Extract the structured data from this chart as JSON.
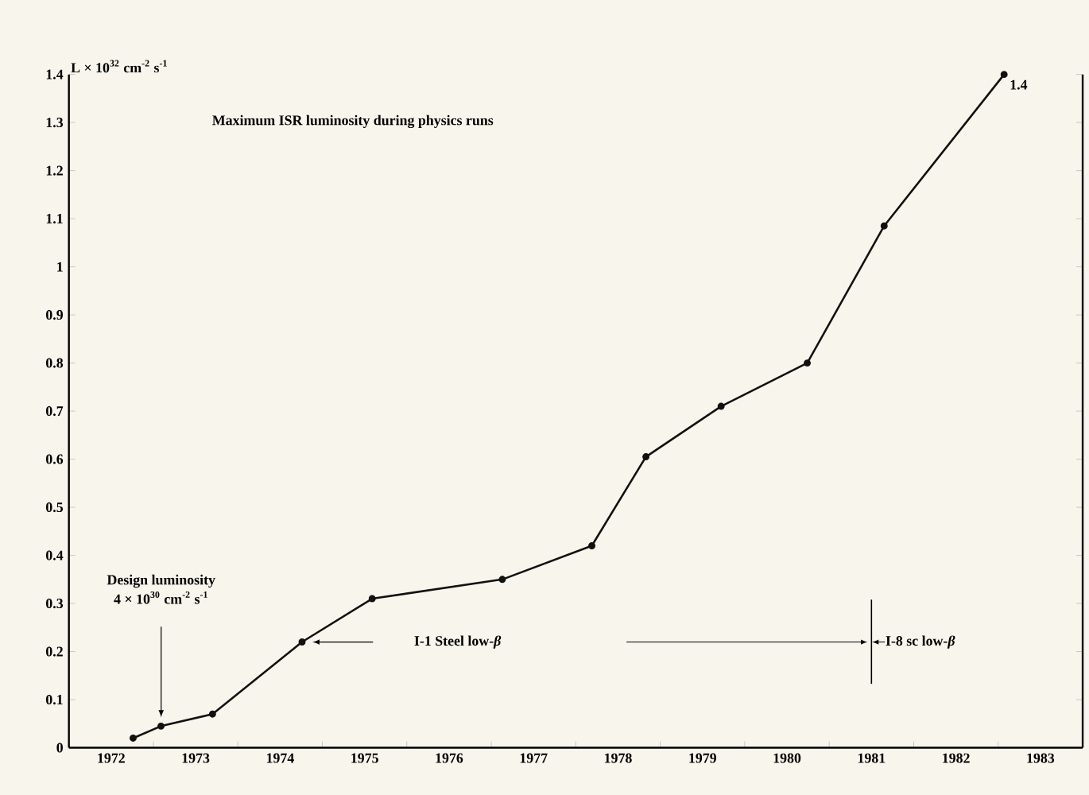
{
  "chart_data": {
    "type": "line",
    "title": "Maximum ISR luminosity during physics runs",
    "ylabel": "L × 10$^{32}$ cm$^{-2}$ s$^{-1}$",
    "x": [
      1972.76,
      1973.09,
      1973.7,
      1974.76,
      1975.59,
      1977.13,
      1978.19,
      1978.83,
      1979.72,
      1980.74,
      1981.65,
      1983.07
    ],
    "series": [
      {
        "color": "#111111",
        "values": [
          0.02,
          0.045,
          0.07,
          0.22,
          0.31,
          0.35,
          0.42,
          0.605,
          0.71,
          0.8,
          1.085,
          1.4
        ],
        "value_labels": [
          null,
          null,
          null,
          null,
          null,
          null,
          null,
          null,
          null,
          null,
          null,
          "1.4"
        ]
      }
    ],
    "marker": "circle",
    "line_style": "solid",
    "xlim": [
      1972,
      1984
    ],
    "ylim": [
      0,
      1.4
    ],
    "xticks": [
      {
        "value": 1972.5,
        "label": "1972"
      },
      {
        "value": 1973.5,
        "label": "1973"
      },
      {
        "value": 1974.5,
        "label": "1974"
      },
      {
        "value": 1975.5,
        "label": "1975"
      },
      {
        "value": 1976.5,
        "label": "1976"
      },
      {
        "value": 1977.5,
        "label": "1977"
      },
      {
        "value": 1978.5,
        "label": "1978"
      },
      {
        "value": 1979.5,
        "label": "1979"
      },
      {
        "value": 1980.5,
        "label": "1980"
      },
      {
        "value": 1981.5,
        "label": "1981"
      },
      {
        "value": 1982.5,
        "label": "1982"
      },
      {
        "value": 1983.5,
        "label": "1983"
      },
      {
        "value": 1973,
        "label": null
      },
      {
        "value": 1974,
        "label": null
      },
      {
        "value": 1975,
        "label": null
      },
      {
        "value": 1976,
        "label": null
      },
      {
        "value": 1977,
        "label": null
      },
      {
        "value": 1978,
        "label": null
      },
      {
        "value": 1979,
        "label": null
      },
      {
        "value": 1980,
        "label": null
      },
      {
        "value": 1981,
        "label": null
      },
      {
        "value": 1982,
        "label": null
      },
      {
        "value": 1983,
        "label": null
      }
    ],
    "yticks": [
      0,
      0.1,
      0.2,
      0.3,
      0.4,
      0.5,
      0.6,
      0.7,
      0.8,
      0.9,
      1,
      1.1,
      1.2,
      1.3,
      1.4
    ],
    "ref_lines": [
      {
        "axis": "x",
        "value": 1981.5
      }
    ],
    "annotations": [
      "Design luminosity",
      "4 × 10$^{30}$ cm$^{-2}$ s$^{-1}$",
      "I-1  Steel low-*β*",
      "I-8  sc low-*β*"
    ]
  }
}
